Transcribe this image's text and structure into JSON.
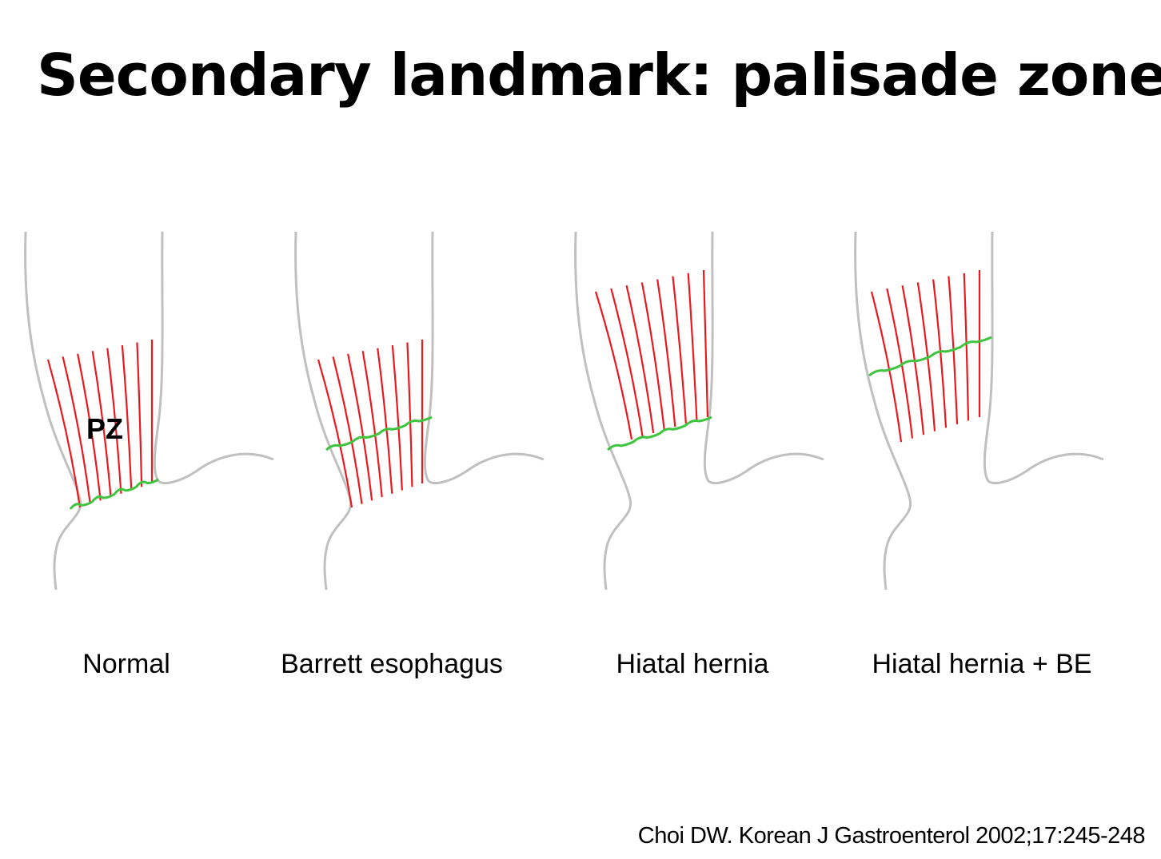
{
  "header": {
    "title": "Secondary landmark: palisade zone"
  },
  "panels": [
    {
      "label": "Normal",
      "annotation": "PZ"
    },
    {
      "label": "Barrett esophagus"
    },
    {
      "label": "Hiatal hernia"
    },
    {
      "label": "Hiatal hernia + BE"
    }
  ],
  "citation": "Choi DW. Korean J Gastroenterol 2002;17:245-248"
}
